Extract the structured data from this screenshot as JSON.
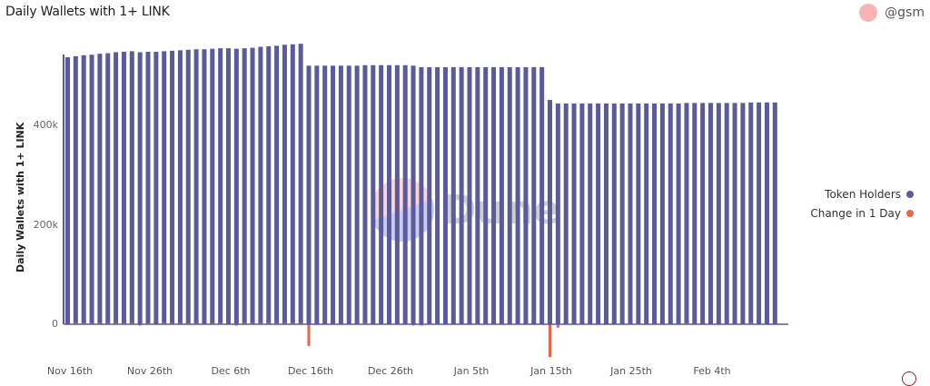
{
  "header": {
    "title": "Daily Wallets with 1+ LINK",
    "author": "@gsm"
  },
  "legend": {
    "items": [
      {
        "label": "Token Holders",
        "color": "#5b5a9a"
      },
      {
        "label": "Change in 1 Day",
        "color": "#e8664a"
      }
    ]
  },
  "watermark": "Dune",
  "chart_data": {
    "type": "bar",
    "title": "Daily Wallets with 1+ LINK",
    "xlabel": "",
    "ylabel": "Daily Wallets with 1+ LINK",
    "ylim": [
      -80000,
      600000
    ],
    "y_ticks": [
      "0",
      "200k",
      "400k"
    ],
    "x_tick_labels": [
      "Nov 16th",
      "Nov 26th",
      "Dec 6th",
      "Dec 16th",
      "Dec 26th",
      "Jan 5th",
      "Jan 15th",
      "Jan 25th",
      "Feb 4th"
    ],
    "legend_position": "right",
    "grid": false,
    "start_date": "Nov 16th",
    "series": [
      {
        "name": "Token Holders",
        "color": "#5b5a9a",
        "values": [
          537000,
          539000,
          541000,
          542000,
          544000,
          545000,
          547000,
          548000,
          549000,
          547000,
          548000,
          548000,
          549000,
          550000,
          551000,
          552000,
          553000,
          553000,
          554000,
          555000,
          555000,
          554000,
          555000,
          556000,
          558000,
          559000,
          560000,
          562000,
          563000,
          564000,
          520000,
          520000,
          520000,
          520000,
          520000,
          520000,
          520000,
          521000,
          521000,
          521000,
          521000,
          521000,
          521000,
          520000,
          517000,
          517000,
          517000,
          517000,
          517000,
          517000,
          517000,
          517000,
          517000,
          517000,
          517000,
          517000,
          517000,
          517000,
          517000,
          517000,
          451000,
          444000,
          444000,
          444000,
          444000,
          444000,
          444000,
          444000,
          444000,
          444000,
          444000,
          444000,
          444000,
          444000,
          444000,
          444000,
          444000,
          445000,
          445000,
          445000,
          445000,
          445000,
          445000,
          445000,
          445000,
          446000,
          446000,
          446000,
          446000
        ]
      },
      {
        "name": "Change in 1 Day",
        "color": "#e8664a",
        "values": [
          0,
          2000,
          2000,
          1000,
          2000,
          1000,
          2000,
          1000,
          1000,
          -2000,
          1000,
          0,
          1000,
          1000,
          1000,
          1000,
          1000,
          0,
          1000,
          1000,
          0,
          -1000,
          1000,
          1000,
          2000,
          1000,
          1000,
          2000,
          1000,
          1000,
          -44000,
          0,
          0,
          0,
          0,
          0,
          0,
          1000,
          0,
          0,
          0,
          0,
          0,
          -1000,
          -3000,
          0,
          0,
          0,
          0,
          0,
          0,
          0,
          0,
          0,
          0,
          0,
          0,
          0,
          0,
          0,
          -66000,
          -7000,
          0,
          0,
          0,
          0,
          0,
          0,
          0,
          0,
          0,
          0,
          0,
          0,
          0,
          0,
          0,
          1000,
          0,
          0,
          0,
          0,
          0,
          0,
          0,
          1000,
          0,
          0,
          0
        ]
      }
    ]
  }
}
